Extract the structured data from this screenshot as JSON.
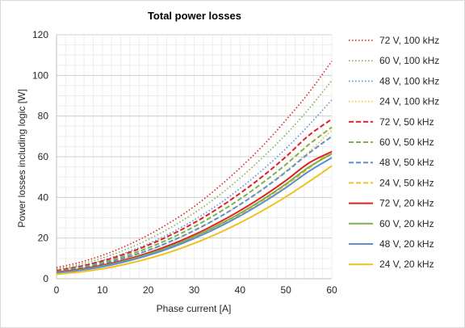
{
  "chart_data": {
    "type": "line",
    "title": "Total power losses",
    "xlabel": "Phase current [A]",
    "ylabel": "Power losses including logic [W]",
    "xlim": [
      0,
      60
    ],
    "ylim": [
      0,
      120
    ],
    "xticks": [
      0,
      10,
      20,
      30,
      40,
      50,
      60
    ],
    "yticks": [
      0,
      20,
      40,
      60,
      80,
      100,
      120
    ],
    "grid": true,
    "legend_position": "right",
    "x": [
      0,
      5,
      10,
      15,
      20,
      25,
      30,
      35,
      40,
      45,
      50,
      55,
      60
    ],
    "series": [
      {
        "name": "72 V, 100 kHz",
        "color": "#e02020",
        "style": "dotted",
        "values": [
          5.5,
          8.0,
          11.5,
          16.0,
          21.5,
          28.0,
          35.5,
          44.5,
          54.5,
          65.5,
          78.0,
          91.5,
          107.0
        ]
      },
      {
        "name": "60 V, 100 kHz",
        "color": "#7fb050",
        "style": "dotted",
        "values": [
          4.8,
          7.0,
          10.2,
          14.3,
          19.3,
          25.3,
          32.3,
          40.3,
          49.5,
          59.8,
          71.0,
          83.5,
          97.5
        ]
      },
      {
        "name": "48 V, 100 kHz",
        "color": "#5b8fd0",
        "style": "dotted",
        "values": [
          4.2,
          6.2,
          9.0,
          12.7,
          17.2,
          22.6,
          28.9,
          36.1,
          44.4,
          53.7,
          64.0,
          75.5,
          88.0
        ]
      },
      {
        "name": "24 V, 100 kHz",
        "color": "#f0c020",
        "style": "dotted",
        "values": [
          3.5,
          5.0,
          7.2,
          10.1,
          13.8,
          18.3,
          23.5,
          29.6,
          36.5,
          44.3,
          53.0,
          62.5,
          73.0
        ]
      },
      {
        "name": "72 V, 50 kHz",
        "color": "#e02020",
        "style": "dashed",
        "values": [
          4.0,
          6.0,
          8.7,
          12.2,
          16.5,
          21.6,
          27.5,
          34.3,
          42.0,
          50.5,
          60.0,
          70.5,
          78.5
        ]
      },
      {
        "name": "60 V, 50 kHz",
        "color": "#7fb050",
        "style": "dashed",
        "values": [
          3.6,
          5.4,
          7.9,
          11.2,
          15.2,
          20.0,
          25.6,
          32.0,
          39.2,
          47.3,
          56.2,
          66.0,
          74.5
        ]
      },
      {
        "name": "48 V, 50 kHz",
        "color": "#5b8fd0",
        "style": "dashed",
        "values": [
          3.3,
          5.0,
          7.3,
          10.3,
          14.0,
          18.5,
          23.7,
          29.7,
          36.5,
          44.1,
          52.5,
          61.7,
          70.0
        ]
      },
      {
        "name": "24 V, 50 kHz",
        "color": "#f0c020",
        "style": "dashed",
        "values": [
          2.8,
          4.2,
          6.2,
          8.8,
          12.0,
          15.9,
          20.5,
          25.8,
          31.8,
          38.6,
          46.1,
          54.3,
          63.0
        ]
      },
      {
        "name": "72 V, 20 kHz",
        "color": "#e02020",
        "style": "solid",
        "values": [
          3.2,
          4.6,
          6.6,
          9.3,
          12.7,
          16.8,
          21.6,
          27.2,
          33.5,
          40.5,
          48.3,
          56.9,
          62.5
        ]
      },
      {
        "name": "60 V, 20 kHz",
        "color": "#7fb050",
        "style": "solid",
        "values": [
          3.0,
          4.3,
          6.2,
          8.8,
          12.1,
          16.0,
          20.7,
          26.1,
          32.2,
          39.0,
          46.6,
          54.9,
          61.5
        ]
      },
      {
        "name": "48 V, 20 kHz",
        "color": "#5b8fd0",
        "style": "solid",
        "values": [
          2.8,
          4.1,
          5.9,
          8.4,
          11.5,
          15.3,
          19.8,
          25.0,
          30.9,
          37.5,
          44.8,
          52.8,
          59.5
        ]
      },
      {
        "name": "24 V, 20 kHz",
        "color": "#f0c020",
        "style": "solid",
        "values": [
          2.2,
          3.3,
          4.9,
          7.1,
          9.9,
          13.3,
          17.4,
          22.1,
          27.5,
          33.6,
          40.3,
          47.7,
          55.5
        ]
      }
    ]
  }
}
